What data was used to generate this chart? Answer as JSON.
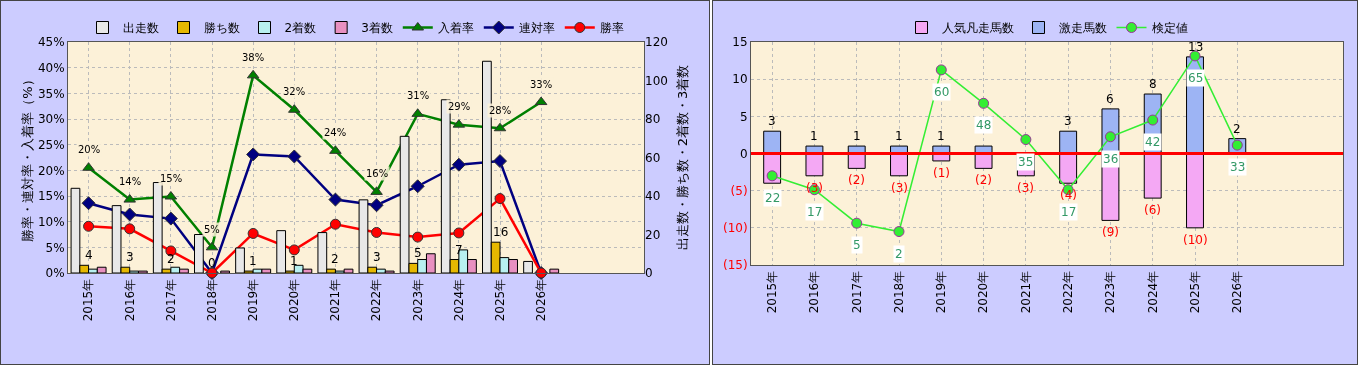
{
  "chart_data": [
    {
      "type": "bar",
      "categories": [
        "2015年",
        "2016年",
        "2017年",
        "2018年",
        "2019年",
        "2020年",
        "2021年",
        "2022年",
        "2023年",
        "2024年",
        "2025年",
        "2026年",
        null,
        null
      ],
      "ylabel": "勝率・連対率・入着率（%）",
      "y2label": "出走数・勝ち数・2着数・3着数",
      "ylim": [
        0,
        45
      ],
      "yticks": [
        {
          "value": 0,
          "label": "0%"
        },
        {
          "value": 5,
          "label": "5%"
        },
        {
          "value": 10,
          "label": "10%"
        },
        {
          "value": 15,
          "label": "15%"
        },
        {
          "value": 20,
          "label": "20%"
        },
        {
          "value": 25,
          "label": "25%"
        },
        {
          "value": 30,
          "label": "30%"
        },
        {
          "value": 35,
          "label": "35%"
        },
        {
          "value": 40,
          "label": "40%"
        },
        {
          "value": 45,
          "label": "45%"
        }
      ],
      "y2lim": [
        0,
        120
      ],
      "y2ticks": [
        0,
        20,
        40,
        60,
        80,
        100,
        120
      ],
      "grid": true,
      "legend": "top",
      "series": [
        {
          "name": "出走数",
          "color": "#e8e8e8",
          "axis": "y2",
          "values": [
            44,
            35,
            47,
            20,
            13,
            22,
            21,
            38,
            71,
            90,
            110,
            6,
            null,
            null
          ]
        },
        {
          "name": "勝ち数",
          "color": "#e6b800",
          "axis": "y2",
          "values": [
            4,
            3,
            2,
            0,
            1,
            1,
            2,
            3,
            5,
            7,
            16,
            0,
            null,
            null
          ],
          "value_labels": [
            "4",
            "3",
            "2",
            "0",
            "1",
            "1",
            "2",
            "3",
            "5",
            "7",
            "16",
            null,
            null,
            null
          ]
        },
        {
          "name": "2着数",
          "color": "#b8f0f0",
          "axis": "y2",
          "values": [
            2,
            1,
            3,
            0,
            2,
            4,
            1,
            2,
            7,
            12,
            8,
            0,
            null,
            null
          ]
        },
        {
          "name": "3着数",
          "color": "#e890c0",
          "axis": "y2",
          "values": [
            3,
            1,
            2,
            1,
            2,
            2,
            2,
            1,
            10,
            7,
            7,
            2,
            null,
            null
          ]
        },
        {
          "name": "入着率",
          "type": "line",
          "color": "#008000",
          "marker": "triangle",
          "values": [
            20.5,
            14.3,
            14.9,
            5,
            38.5,
            31.8,
            23.8,
            15.8,
            31,
            28.9,
            28.2,
            33.3,
            null,
            null
          ],
          "value_labels": [
            "20%",
            "14%",
            "15%",
            "5%",
            "38%",
            "32%",
            "24%",
            "16%",
            "31%",
            "29%",
            "28%",
            "33%",
            null,
            null
          ]
        },
        {
          "name": "連対率",
          "type": "line",
          "color": "#000080",
          "marker": "diamond",
          "values": [
            13.6,
            11.4,
            10.6,
            0,
            23.1,
            22.7,
            14.3,
            13.2,
            16.9,
            21.1,
            21.8,
            0,
            null,
            null
          ]
        },
        {
          "name": "勝率",
          "type": "line",
          "color": "#ff0000",
          "marker": "circle",
          "values": [
            9.1,
            8.6,
            4.3,
            0,
            7.7,
            4.5,
            9.5,
            7.9,
            7,
            7.8,
            14.5,
            0,
            null,
            null
          ]
        }
      ]
    },
    {
      "type": "bar",
      "stacked": true,
      "categories": [
        "2015年",
        "2016年",
        "2017年",
        "2018年",
        "2019年",
        "2020年",
        "2021年",
        "2022年",
        "2023年",
        "2024年",
        "2025年",
        "2026年",
        null,
        null
      ],
      "ylim": [
        -15,
        15
      ],
      "yticks": [
        {
          "value": 15,
          "label": "15"
        },
        {
          "value": 10,
          "label": "10"
        },
        {
          "value": 5,
          "label": "5"
        },
        {
          "value": 0,
          "label": "0"
        },
        {
          "value": -5,
          "label": "(5)"
        },
        {
          "value": -10,
          "label": "(10)"
        },
        {
          "value": -15,
          "label": "(15)"
        }
      ],
      "y2lim": [
        -10,
        70
      ],
      "grid": true,
      "legend": "top",
      "ref_lines": [
        {
          "axis": "y",
          "value": 0,
          "color": "#ff0000"
        }
      ],
      "series": [
        {
          "name": "人気凡走馬数",
          "color": "#f4a8f4",
          "values": [
            -4,
            -3,
            -2,
            -3,
            -1,
            -2,
            -3,
            -4,
            -9,
            -6,
            -10,
            0,
            null,
            null
          ],
          "value_labels": [
            null,
            "(3)",
            "(2)",
            "(3)",
            "(1)",
            "(2)",
            "(3)",
            "(4)",
            "(9)",
            "(6)",
            "(10)",
            null,
            null,
            null
          ]
        },
        {
          "name": "激走馬数",
          "color": "#9db4f4",
          "values": [
            3,
            1,
            1,
            1,
            1,
            1,
            0,
            3,
            6,
            8,
            13,
            2,
            null,
            null
          ],
          "value_labels": [
            "3",
            "1",
            "1",
            "1",
            "1",
            null,
            null,
            "3",
            "6",
            "8",
            "13",
            "2",
            null,
            null
          ]
        },
        {
          "name": "検定値",
          "type": "line",
          "axis": "y2",
          "color": "#33ee33",
          "marker": "circle",
          "values": [
            22,
            17,
            5,
            2,
            60,
            48,
            35,
            17,
            36,
            42,
            65,
            33,
            null,
            null
          ],
          "value_labels": [
            "22",
            "17",
            "5",
            "2",
            "60",
            "48",
            "35",
            "17",
            "36",
            "42",
            "65",
            "33",
            null,
            null
          ]
        }
      ]
    }
  ]
}
